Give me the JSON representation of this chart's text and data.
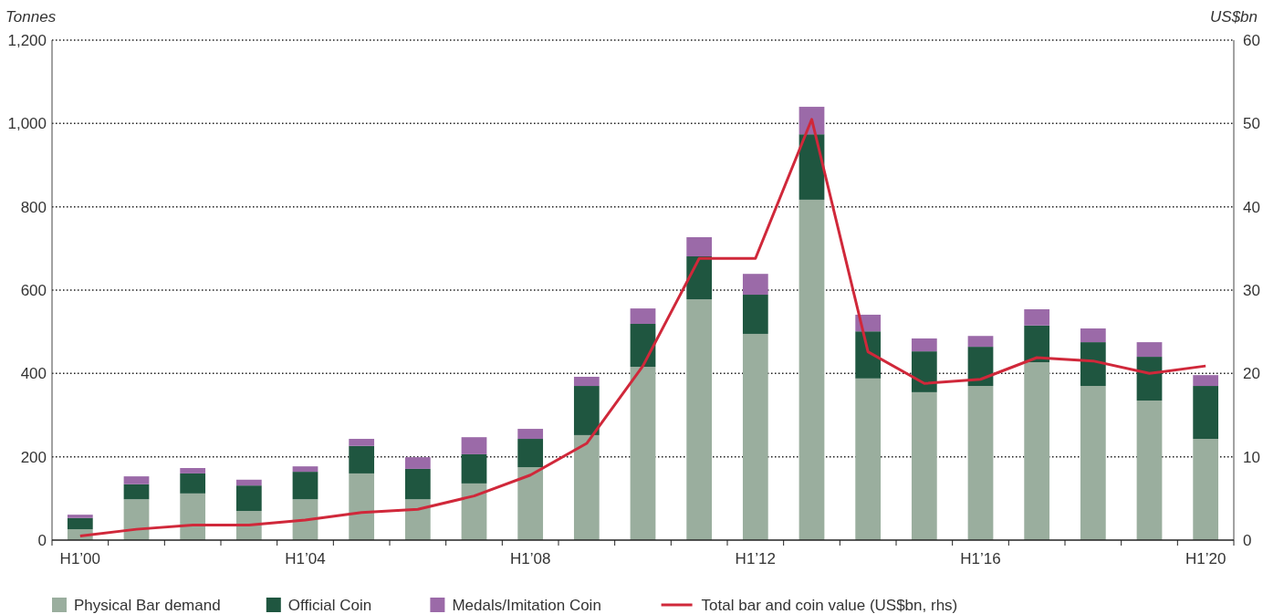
{
  "chart_data": {
    "type": "bar",
    "stacked": true,
    "xlabel": null,
    "ylabel": "Tonnes",
    "y2label": "US$bn",
    "categories": [
      "H1’00",
      null,
      null,
      null,
      "H1’04",
      null,
      null,
      null,
      "H1’08",
      null,
      null,
      null,
      "H1’12",
      null,
      null,
      null,
      "H1’16",
      null,
      null,
      null,
      "H1’20"
    ],
    "series": [
      {
        "name": "Physical Bar demand",
        "color": "#9aae9e",
        "values": [
          26,
          98,
          112,
          70,
          98,
          160,
          98,
          136,
          175,
          252,
          416,
          578,
          495,
          817,
          388,
          355,
          370,
          427,
          370,
          335,
          243
        ]
      },
      {
        "name": "Official Coin",
        "color": "#1f5640",
        "values": [
          27,
          36,
          48,
          61,
          66,
          66,
          73,
          70,
          68,
          118,
          103,
          103,
          94,
          157,
          113,
          98,
          94,
          88,
          105,
          105,
          127
        ]
      },
      {
        "name": "Medals/Imitation Coin",
        "color": "#9b6aa8",
        "values": [
          8,
          19,
          13,
          14,
          13,
          17,
          28,
          41,
          24,
          22,
          37,
          46,
          50,
          66,
          40,
          31,
          26,
          39,
          33,
          35,
          26
        ]
      },
      {
        "name": "Total bar and coin value (US$bn, rhs)",
        "type": "line",
        "axis": "y2",
        "color": "#d0283a",
        "values": [
          0.5,
          1.3,
          1.8,
          1.8,
          2.4,
          3.3,
          3.7,
          5.3,
          7.8,
          11.6,
          20.9,
          33.8,
          33.8,
          50.5,
          22.6,
          18.8,
          19.3,
          21.9,
          21.5,
          20.0,
          20.9
        ]
      }
    ],
    "ylim": [
      0,
      1200
    ],
    "yticks": [
      0,
      {
        "value": 200,
        "label": "200"
      },
      {
        "value": 400,
        "label": "400"
      },
      {
        "value": 600,
        "label": "600"
      },
      {
        "value": 800,
        "label": "800"
      },
      {
        "value": 1000,
        "label": "1,000"
      },
      {
        "value": 1200,
        "label": "1,200"
      }
    ],
    "y2lim": [
      0,
      60
    ],
    "y2ticks": [
      0,
      10,
      20,
      30,
      40,
      50,
      60
    ],
    "grid": "y",
    "legend": "bottom",
    "line_style": "solid"
  }
}
